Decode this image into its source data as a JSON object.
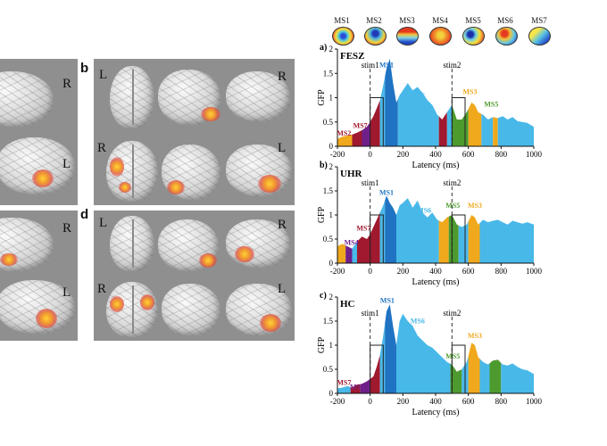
{
  "brains": {
    "panel_b_letter": "b",
    "panel_d_letter": "d",
    "labels": {
      "left": "L",
      "right": "R"
    }
  },
  "microstates": [
    {
      "name": "MS1",
      "color": "#1f73c2"
    },
    {
      "name": "MS2",
      "color": "#a0192e"
    },
    {
      "name": "MS3",
      "color": "#f0a81c"
    },
    {
      "name": "MS4",
      "color": "#6f1f8a"
    },
    {
      "name": "MS5",
      "color": "#4d9a2e"
    },
    {
      "name": "MS6",
      "color": "#48b8e8"
    },
    {
      "name": "MS7",
      "color": "#a0192e"
    }
  ],
  "chart_data": [
    {
      "type": "area",
      "panel": "a)",
      "title": "FESZ",
      "xlabel": "Latency (ms)",
      "ylabel": "GFP",
      "xlim": [
        -200,
        1000
      ],
      "ylim": [
        0,
        2
      ],
      "xticks": [
        "-200",
        "0",
        "200",
        "400",
        "600",
        "800",
        "1000"
      ],
      "yticks": [
        "0",
        "0.5",
        "1",
        "1.5",
        "2"
      ],
      "markers": [
        {
          "label": "stim1",
          "x": 0
        },
        {
          "label": "stim2",
          "x": 500
        }
      ],
      "boxes": [
        [
          0,
          80
        ],
        [
          500,
          580
        ]
      ],
      "x": [
        -200,
        -170,
        -140,
        -110,
        -80,
        -50,
        -20,
        0,
        20,
        40,
        60,
        80,
        100,
        120,
        140,
        160,
        180,
        200,
        230,
        260,
        290,
        320,
        350,
        380,
        410,
        440,
        470,
        500,
        530,
        560,
        590,
        620,
        640,
        660,
        690,
        720,
        750,
        780,
        810,
        840,
        870,
        900,
        930,
        960,
        1000
      ],
      "gfp": [
        0.15,
        0.2,
        0.22,
        0.24,
        0.28,
        0.33,
        0.4,
        0.5,
        0.62,
        0.78,
        0.95,
        1.25,
        1.6,
        1.8,
        1.3,
        0.9,
        1.05,
        1.15,
        1.3,
        1.15,
        1.22,
        1.1,
        0.95,
        0.85,
        0.65,
        0.55,
        0.7,
        0.85,
        0.55,
        0.55,
        0.7,
        0.9,
        0.85,
        0.7,
        0.65,
        0.55,
        0.6,
        0.58,
        0.62,
        0.55,
        0.6,
        0.52,
        0.5,
        0.48,
        0.4
      ],
      "segments": [
        {
          "from": -200,
          "to": -110,
          "color": "#f0a81c"
        },
        {
          "from": -110,
          "to": -50,
          "color": "#a0192e"
        },
        {
          "from": -50,
          "to": 0,
          "color": "#6f1f8a"
        },
        {
          "from": 0,
          "to": 60,
          "color": "#a0192e"
        },
        {
          "from": 60,
          "to": 90,
          "color": "#48b8e8"
        },
        {
          "from": 90,
          "to": 170,
          "color": "#1f73c2"
        },
        {
          "from": 170,
          "to": 420,
          "color": "#48b8e8"
        },
        {
          "from": 420,
          "to": 470,
          "color": "#a0192e"
        },
        {
          "from": 470,
          "to": 500,
          "color": "#48b8e8"
        },
        {
          "from": 500,
          "to": 600,
          "color": "#4d9a2e"
        },
        {
          "from": 600,
          "to": 680,
          "color": "#f0a81c"
        },
        {
          "from": 680,
          "to": 750,
          "color": "#48b8e8"
        },
        {
          "from": 750,
          "to": 780,
          "color": "#f0a81c"
        },
        {
          "from": 780,
          "to": 1000,
          "color": "#48b8e8"
        }
      ],
      "annotations": [
        {
          "text": "MS1",
          "x": 100,
          "y": 1.62,
          "color": "#1f73c2"
        },
        {
          "text": "MS2",
          "x": -160,
          "y": 0.22,
          "color": "#a0192e"
        },
        {
          "text": "MS7",
          "x": -60,
          "y": 0.38,
          "color": "#a0192e"
        },
        {
          "text": "MS6",
          "x": 290,
          "y": 1.0,
          "color": "#48b8e8"
        },
        {
          "text": "MS3",
          "x": 610,
          "y": 1.07,
          "color": "#f0a81c"
        },
        {
          "text": "MS5",
          "x": 740,
          "y": 0.82,
          "color": "#4d9a2e"
        }
      ]
    },
    {
      "type": "area",
      "panel": "b)",
      "title": "UHR",
      "xlabel": "Latency (ms)",
      "ylabel": "GFP",
      "xlim": [
        -200,
        1000
      ],
      "ylim": [
        0,
        2
      ],
      "xticks": [
        "-200",
        "0",
        "200",
        "400",
        "600",
        "800",
        "1000"
      ],
      "yticks": [
        "0",
        "0.5",
        "1",
        "1.5",
        "2"
      ],
      "markers": [
        {
          "label": "stim1",
          "x": 0
        },
        {
          "label": "stim2",
          "x": 500
        }
      ],
      "boxes": [
        [
          0,
          80
        ],
        [
          500,
          580
        ]
      ],
      "x": [
        -200,
        -170,
        -140,
        -110,
        -80,
        -50,
        -20,
        0,
        20,
        40,
        60,
        80,
        100,
        120,
        140,
        160,
        180,
        200,
        230,
        260,
        290,
        320,
        350,
        380,
        410,
        440,
        470,
        500,
        530,
        560,
        590,
        620,
        640,
        660,
        690,
        720,
        750,
        780,
        810,
        840,
        870,
        900,
        930,
        960,
        1000
      ],
      "gfp": [
        0.35,
        0.4,
        0.35,
        0.3,
        0.45,
        0.55,
        0.5,
        0.6,
        0.75,
        0.9,
        1.05,
        1.2,
        1.4,
        1.25,
        1.15,
        1.0,
        1.2,
        1.25,
        1.35,
        1.15,
        1.3,
        1.05,
        0.95,
        1.05,
        0.9,
        0.85,
        0.95,
        1.0,
        0.8,
        0.75,
        0.8,
        1.0,
        0.95,
        0.8,
        0.9,
        0.85,
        0.88,
        0.9,
        0.85,
        0.8,
        0.88,
        0.85,
        0.82,
        0.85,
        0.8
      ],
      "segments": [
        {
          "from": -200,
          "to": -150,
          "color": "#f0a81c"
        },
        {
          "from": -150,
          "to": -110,
          "color": "#6f1f8a"
        },
        {
          "from": -110,
          "to": -80,
          "color": "#48b8e8"
        },
        {
          "from": -80,
          "to": 60,
          "color": "#a0192e"
        },
        {
          "from": 60,
          "to": 90,
          "color": "#48b8e8"
        },
        {
          "from": 90,
          "to": 160,
          "color": "#1f73c2"
        },
        {
          "from": 160,
          "to": 420,
          "color": "#48b8e8"
        },
        {
          "from": 420,
          "to": 480,
          "color": "#f0a81c"
        },
        {
          "from": 480,
          "to": 540,
          "color": "#4d9a2e"
        },
        {
          "from": 540,
          "to": 600,
          "color": "#48b8e8"
        },
        {
          "from": 600,
          "to": 670,
          "color": "#f0a81c"
        },
        {
          "from": 670,
          "to": 1000,
          "color": "#48b8e8"
        }
      ],
      "annotations": [
        {
          "text": "MS1",
          "x": 100,
          "y": 1.42,
          "color": "#1f73c2"
        },
        {
          "text": "MS4",
          "x": -115,
          "y": 0.38,
          "color": "#6f1f8a"
        },
        {
          "text": "MS7",
          "x": -40,
          "y": 0.68,
          "color": "#a0192e"
        },
        {
          "text": "MS6",
          "x": 330,
          "y": 1.05,
          "color": "#48b8e8"
        },
        {
          "text": "MS5",
          "x": 505,
          "y": 1.15,
          "color": "#4d9a2e"
        },
        {
          "text": "MS3",
          "x": 640,
          "y": 1.15,
          "color": "#f0a81c"
        }
      ]
    },
    {
      "type": "area",
      "panel": "c)",
      "title": "HC",
      "xlabel": "Latency (ms)",
      "ylabel": "GFP",
      "xlim": [
        -200,
        1000
      ],
      "ylim": [
        0,
        2
      ],
      "xticks": [
        "-200",
        "0",
        "200",
        "400",
        "600",
        "800",
        "1000"
      ],
      "yticks": [
        "0",
        "0.5",
        "1",
        "1.5",
        "2"
      ],
      "markers": [
        {
          "label": "stim1",
          "x": 0
        },
        {
          "label": "stim2",
          "x": 500
        }
      ],
      "boxes": [
        [
          0,
          80
        ],
        [
          500,
          580
        ]
      ],
      "x": [
        -200,
        -170,
        -140,
        -110,
        -80,
        -50,
        -20,
        0,
        20,
        40,
        60,
        80,
        100,
        120,
        140,
        160,
        180,
        200,
        230,
        260,
        290,
        320,
        350,
        380,
        410,
        440,
        470,
        500,
        530,
        560,
        590,
        620,
        640,
        660,
        690,
        720,
        750,
        780,
        810,
        840,
        870,
        900,
        930,
        960,
        1000
      ],
      "gfp": [
        0.1,
        0.12,
        0.15,
        0.12,
        0.18,
        0.2,
        0.25,
        0.3,
        0.35,
        0.55,
        0.8,
        1.2,
        1.7,
        1.85,
        1.4,
        1.0,
        1.5,
        1.65,
        1.5,
        1.4,
        1.2,
        1.1,
        1.0,
        0.95,
        0.85,
        0.75,
        0.65,
        0.6,
        0.45,
        0.5,
        0.65,
        1.05,
        1.0,
        0.75,
        0.65,
        0.6,
        0.68,
        0.7,
        0.6,
        0.58,
        0.62,
        0.55,
        0.5,
        0.48,
        0.4
      ],
      "segments": [
        {
          "from": -200,
          "to": -120,
          "color": "#48b8e8"
        },
        {
          "from": -120,
          "to": -60,
          "color": "#a0192e"
        },
        {
          "from": -60,
          "to": 0,
          "color": "#6f1f8a"
        },
        {
          "from": 0,
          "to": 60,
          "color": "#a0192e"
        },
        {
          "from": 60,
          "to": 90,
          "color": "#48b8e8"
        },
        {
          "from": 90,
          "to": 160,
          "color": "#1f73c2"
        },
        {
          "from": 160,
          "to": 490,
          "color": "#48b8e8"
        },
        {
          "from": 490,
          "to": 560,
          "color": "#4d9a2e"
        },
        {
          "from": 560,
          "to": 600,
          "color": "#48b8e8"
        },
        {
          "from": 600,
          "to": 670,
          "color": "#f0a81c"
        },
        {
          "from": 670,
          "to": 730,
          "color": "#48b8e8"
        },
        {
          "from": 730,
          "to": 800,
          "color": "#4d9a2e"
        },
        {
          "from": 800,
          "to": 1000,
          "color": "#48b8e8"
        }
      ],
      "annotations": [
        {
          "text": "MS1",
          "x": 105,
          "y": 1.88,
          "color": "#1f73c2"
        },
        {
          "text": "MS7",
          "x": -160,
          "y": 0.18,
          "color": "#a0192e"
        },
        {
          "text": "MS4",
          "x": -80,
          "y": 0.08,
          "color": "#6f1f8a"
        },
        {
          "text": "MS6",
          "x": 290,
          "y": 1.45,
          "color": "#48b8e8"
        },
        {
          "text": "MS5",
          "x": 505,
          "y": 0.72,
          "color": "#4d9a2e"
        },
        {
          "text": "MS3",
          "x": 640,
          "y": 1.15,
          "color": "#f0a81c"
        }
      ]
    }
  ]
}
